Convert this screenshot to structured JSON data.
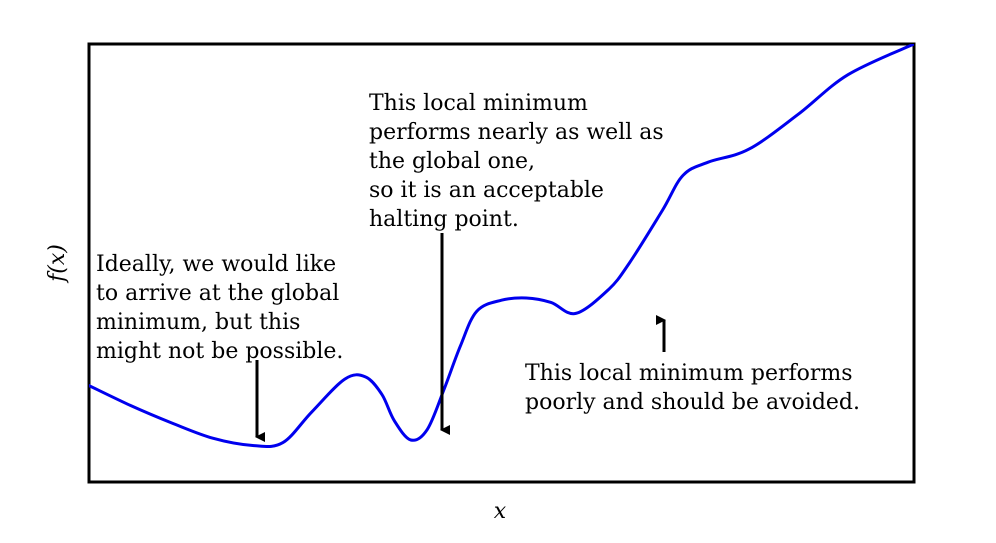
{
  "chart_data": {
    "type": "line",
    "xlabel": "x",
    "ylabel": "f(x)",
    "title": "",
    "grid": false,
    "ticks": "none",
    "xlim": [
      0,
      1
    ],
    "ylim": [
      0,
      1
    ],
    "series": [
      {
        "color": "#0000ee",
        "x": [
          0.0,
          0.05,
          0.1,
          0.15,
          0.2,
          0.235,
          0.27,
          0.31,
          0.335,
          0.355,
          0.37,
          0.39,
          0.41,
          0.43,
          0.45,
          0.47,
          0.5,
          0.53,
          0.56,
          0.59,
          0.63,
          0.655,
          0.695,
          0.72,
          0.75,
          0.8,
          0.86,
          0.92,
          1.0
        ],
        "y": [
          0.22,
          0.175,
          0.135,
          0.1,
          0.083,
          0.09,
          0.16,
          0.235,
          0.24,
          0.2,
          0.14,
          0.096,
          0.12,
          0.21,
          0.31,
          0.39,
          0.415,
          0.42,
          0.41,
          0.385,
          0.44,
          0.5,
          0.62,
          0.7,
          0.73,
          0.76,
          0.84,
          0.93,
          1.0
        ]
      }
    ],
    "annotations": [
      {
        "lines": [
          "Ideally, we would like",
          "to arrive at the global",
          "minimum, but this",
          "might not be possible."
        ],
        "target": [
          0.202,
          0.083
        ]
      },
      {
        "lines": [
          "This local minimum",
          "performs nearly as well as",
          "the global one,",
          "so it is an acceptable",
          "halting point."
        ],
        "target": [
          0.428,
          0.096
        ]
      },
      {
        "lines": [
          "This local minimum performs",
          "poorly and should be avoided."
        ],
        "target": [
          0.697,
          0.385
        ]
      }
    ]
  }
}
